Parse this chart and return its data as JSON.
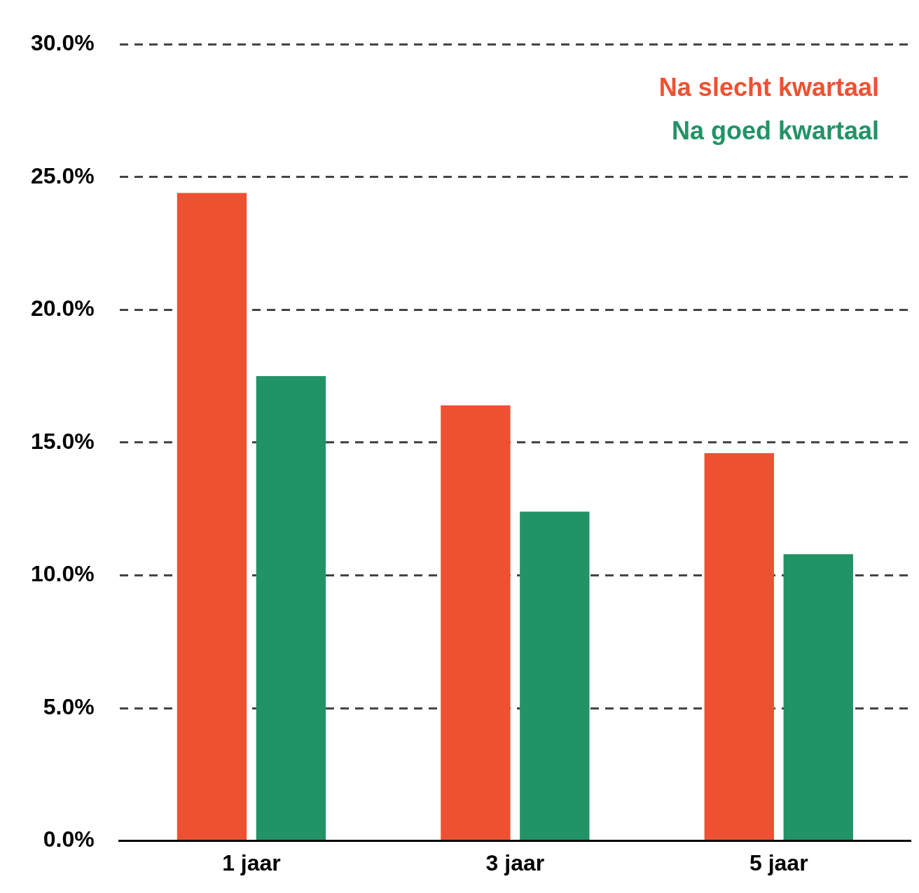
{
  "chart_data": {
    "type": "bar",
    "categories": [
      "1 jaar",
      "3 jaar",
      "5 jaar"
    ],
    "series": [
      {
        "name": "Na slecht kwartaal",
        "color": "#ee5132",
        "values": [
          24.4,
          16.4,
          14.6
        ]
      },
      {
        "name": "Na goed kwartaal",
        "color": "#229366",
        "values": [
          17.5,
          12.4,
          10.8
        ]
      }
    ],
    "ylim": [
      0,
      30
    ],
    "yticks": [
      {
        "value": 0,
        "label": "0.0%"
      },
      {
        "value": 5,
        "label": "5.0%"
      },
      {
        "value": 10,
        "label": "10.0%"
      },
      {
        "value": 15,
        "label": "15.0%"
      },
      {
        "value": 20,
        "label": "20.0%"
      },
      {
        "value": 25,
        "label": "25.0%"
      },
      {
        "value": 30,
        "label": "30.0%"
      }
    ],
    "grid": "y",
    "legend": "top right"
  }
}
